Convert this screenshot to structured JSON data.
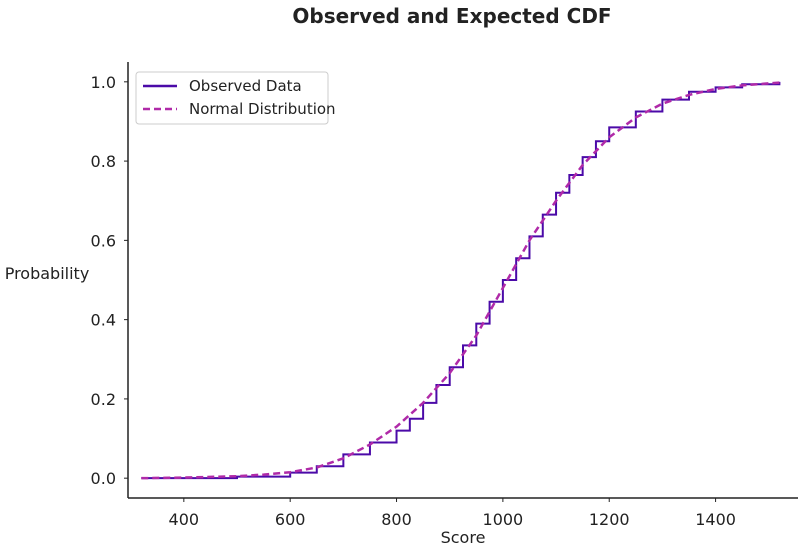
{
  "chart_data": {
    "type": "line",
    "title": "Observed and Expected CDF",
    "xlabel": "Score",
    "ylabel": "Probability",
    "xlim": [
      295,
      1555
    ],
    "ylim": [
      -0.05,
      1.05
    ],
    "x_ticks": [
      400,
      600,
      800,
      1000,
      1200,
      1400
    ],
    "x_tick_labels": [
      "400",
      "600",
      "800",
      "1000",
      "1200",
      "1400"
    ],
    "y_ticks": [
      0.0,
      0.2,
      0.4,
      0.6,
      0.8,
      1.0
    ],
    "y_tick_labels": [
      "0.0",
      "0.2",
      "0.4",
      "0.6",
      "0.8",
      "1.0"
    ],
    "grid": false,
    "legend_position": "top-left",
    "series": [
      {
        "name": "Observed Data",
        "style": "solid step",
        "color": "#4b0aa8",
        "x": [
          320,
          500,
          600,
          650,
          700,
          750,
          800,
          825,
          850,
          875,
          900,
          925,
          950,
          975,
          1000,
          1025,
          1050,
          1075,
          1100,
          1125,
          1150,
          1175,
          1200,
          1250,
          1300,
          1350,
          1400,
          1450,
          1520
        ],
        "y": [
          0.0,
          0.004,
          0.014,
          0.03,
          0.06,
          0.09,
          0.12,
          0.15,
          0.19,
          0.235,
          0.28,
          0.335,
          0.39,
          0.445,
          0.5,
          0.555,
          0.61,
          0.665,
          0.72,
          0.765,
          0.81,
          0.85,
          0.885,
          0.925,
          0.955,
          0.975,
          0.986,
          0.994,
          1.0
        ]
      },
      {
        "name": "Normal Distribution",
        "style": "dashed",
        "color": "#b02aa8",
        "x": [
          320,
          400,
          500,
          550,
          600,
          650,
          700,
          750,
          800,
          850,
          900,
          950,
          1000,
          1050,
          1100,
          1150,
          1200,
          1250,
          1300,
          1350,
          1400,
          1450,
          1520
        ],
        "y": [
          0.0,
          0.0015,
          0.005,
          0.009,
          0.015,
          0.027,
          0.05,
          0.085,
          0.13,
          0.19,
          0.265,
          0.36,
          0.48,
          0.6,
          0.7,
          0.79,
          0.86,
          0.91,
          0.945,
          0.967,
          0.982,
          0.991,
          0.998
        ]
      }
    ]
  }
}
